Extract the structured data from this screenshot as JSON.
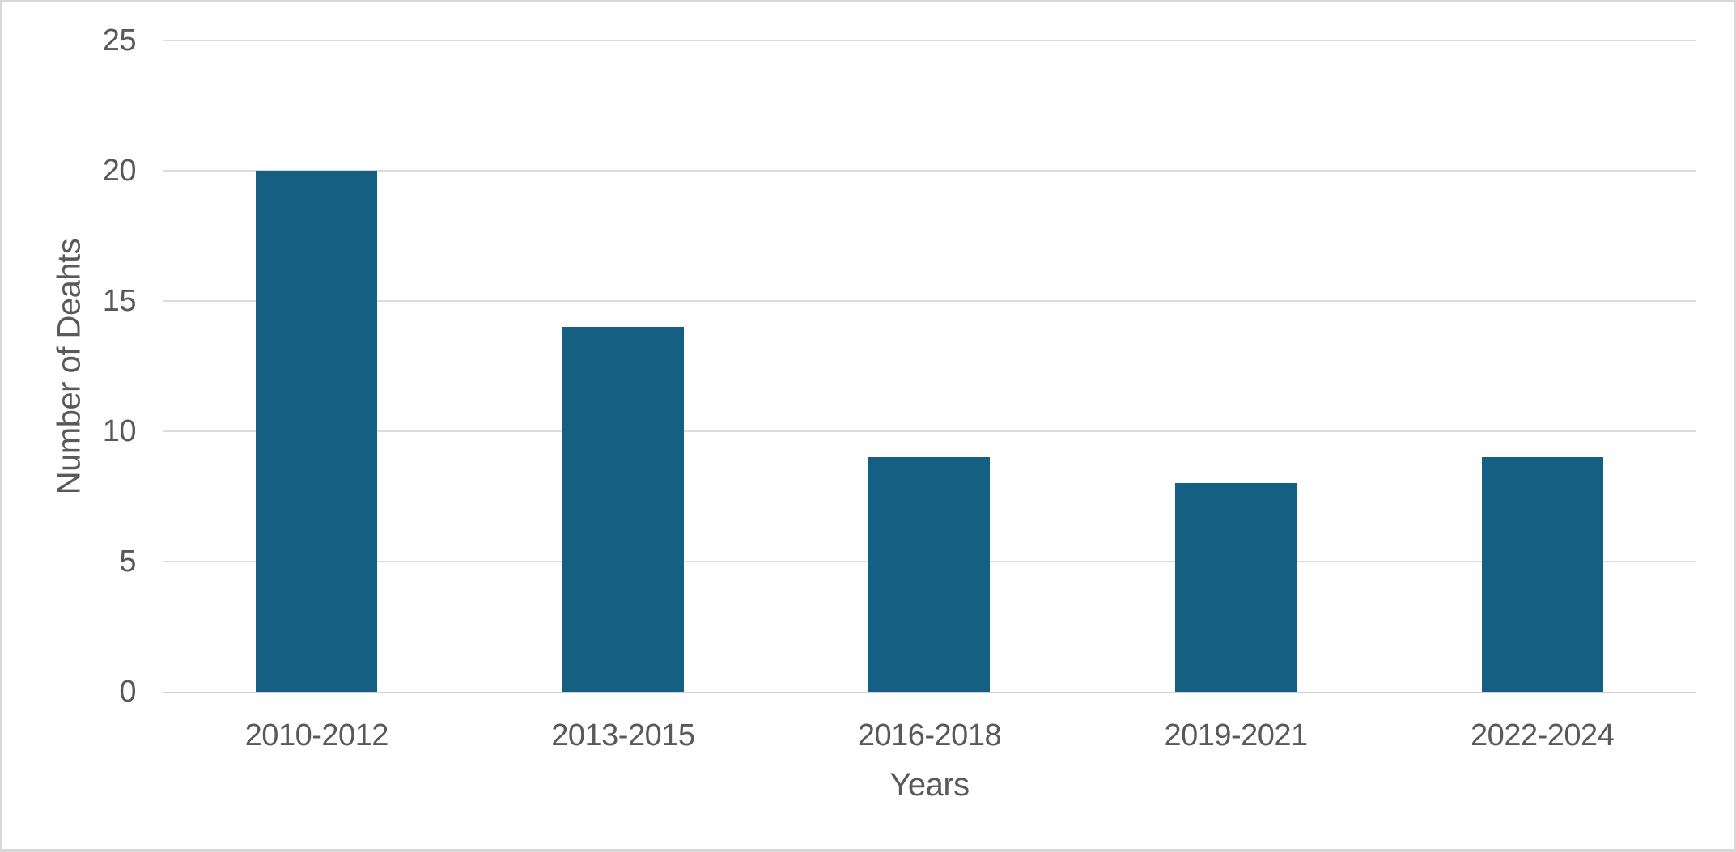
{
  "chart_data": {
    "type": "bar",
    "title": "",
    "categories": [
      "2010-2012",
      "2013-2015",
      "2016-2018",
      "2019-2021",
      "2022-2024"
    ],
    "values": [
      20,
      14,
      9,
      8,
      9
    ],
    "xlabel": "Years",
    "ylabel": "Number of Deahts",
    "ylim": [
      0,
      25
    ],
    "y_ticks": [
      0,
      5,
      10,
      15,
      20,
      25
    ],
    "grid": true,
    "legend": false,
    "colors": {
      "bar": "#156082",
      "gridline": "#dcdcdc",
      "axis_line": "#d0d0d0",
      "text": "#595959",
      "frame_border": "#d7d7d7",
      "background": "#ffffff"
    }
  }
}
